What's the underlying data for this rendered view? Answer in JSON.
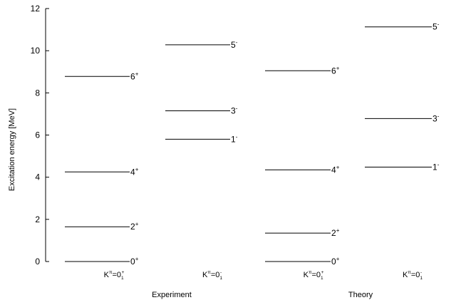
{
  "chart_data": {
    "type": "level-scheme",
    "ylabel": "Excitation energy [MeV]",
    "ylim": [
      0,
      12
    ],
    "yticks": [
      0,
      2,
      4,
      6,
      8,
      10,
      12
    ],
    "groups": [
      {
        "name": "Experiment",
        "bands": [
          {
            "label": {
              "base": "K",
              "pi": "π",
              "eq": "=0",
              "sub": "1",
              "sup": "+"
            },
            "levels": [
              {
                "energy": 0.0,
                "spin": "0",
                "parity": "+"
              },
              {
                "energy": 1.65,
                "spin": "2",
                "parity": "+"
              },
              {
                "energy": 4.25,
                "spin": "4",
                "parity": "+"
              },
              {
                "energy": 8.78,
                "spin": "6",
                "parity": "+"
              }
            ]
          },
          {
            "label": {
              "base": "K",
              "pi": "π",
              "eq": "=0",
              "sub": "1",
              "sup": "-"
            },
            "levels": [
              {
                "energy": 5.8,
                "spin": "1",
                "parity": "-"
              },
              {
                "energy": 7.15,
                "spin": "3",
                "parity": "-"
              },
              {
                "energy": 10.28,
                "spin": "5",
                "parity": "-"
              }
            ]
          }
        ]
      },
      {
        "name": "Theory",
        "bands": [
          {
            "label": {
              "base": "K",
              "pi": "π",
              "eq": "=0",
              "sub": "1",
              "sup": "+"
            },
            "levels": [
              {
                "energy": 0.0,
                "spin": "0",
                "parity": "+"
              },
              {
                "energy": 1.35,
                "spin": "2",
                "parity": "+"
              },
              {
                "energy": 4.35,
                "spin": "4",
                "parity": "+"
              },
              {
                "energy": 9.05,
                "spin": "6",
                "parity": "+"
              }
            ]
          },
          {
            "label": {
              "base": "K",
              "pi": "π",
              "eq": "=0",
              "sub": "1",
              "sup": "-"
            },
            "levels": [
              {
                "energy": 4.48,
                "spin": "1",
                "parity": "-"
              },
              {
                "energy": 6.78,
                "spin": "3",
                "parity": "-"
              },
              {
                "energy": 11.13,
                "spin": "5",
                "parity": "-"
              }
            ]
          }
        ]
      }
    ]
  }
}
